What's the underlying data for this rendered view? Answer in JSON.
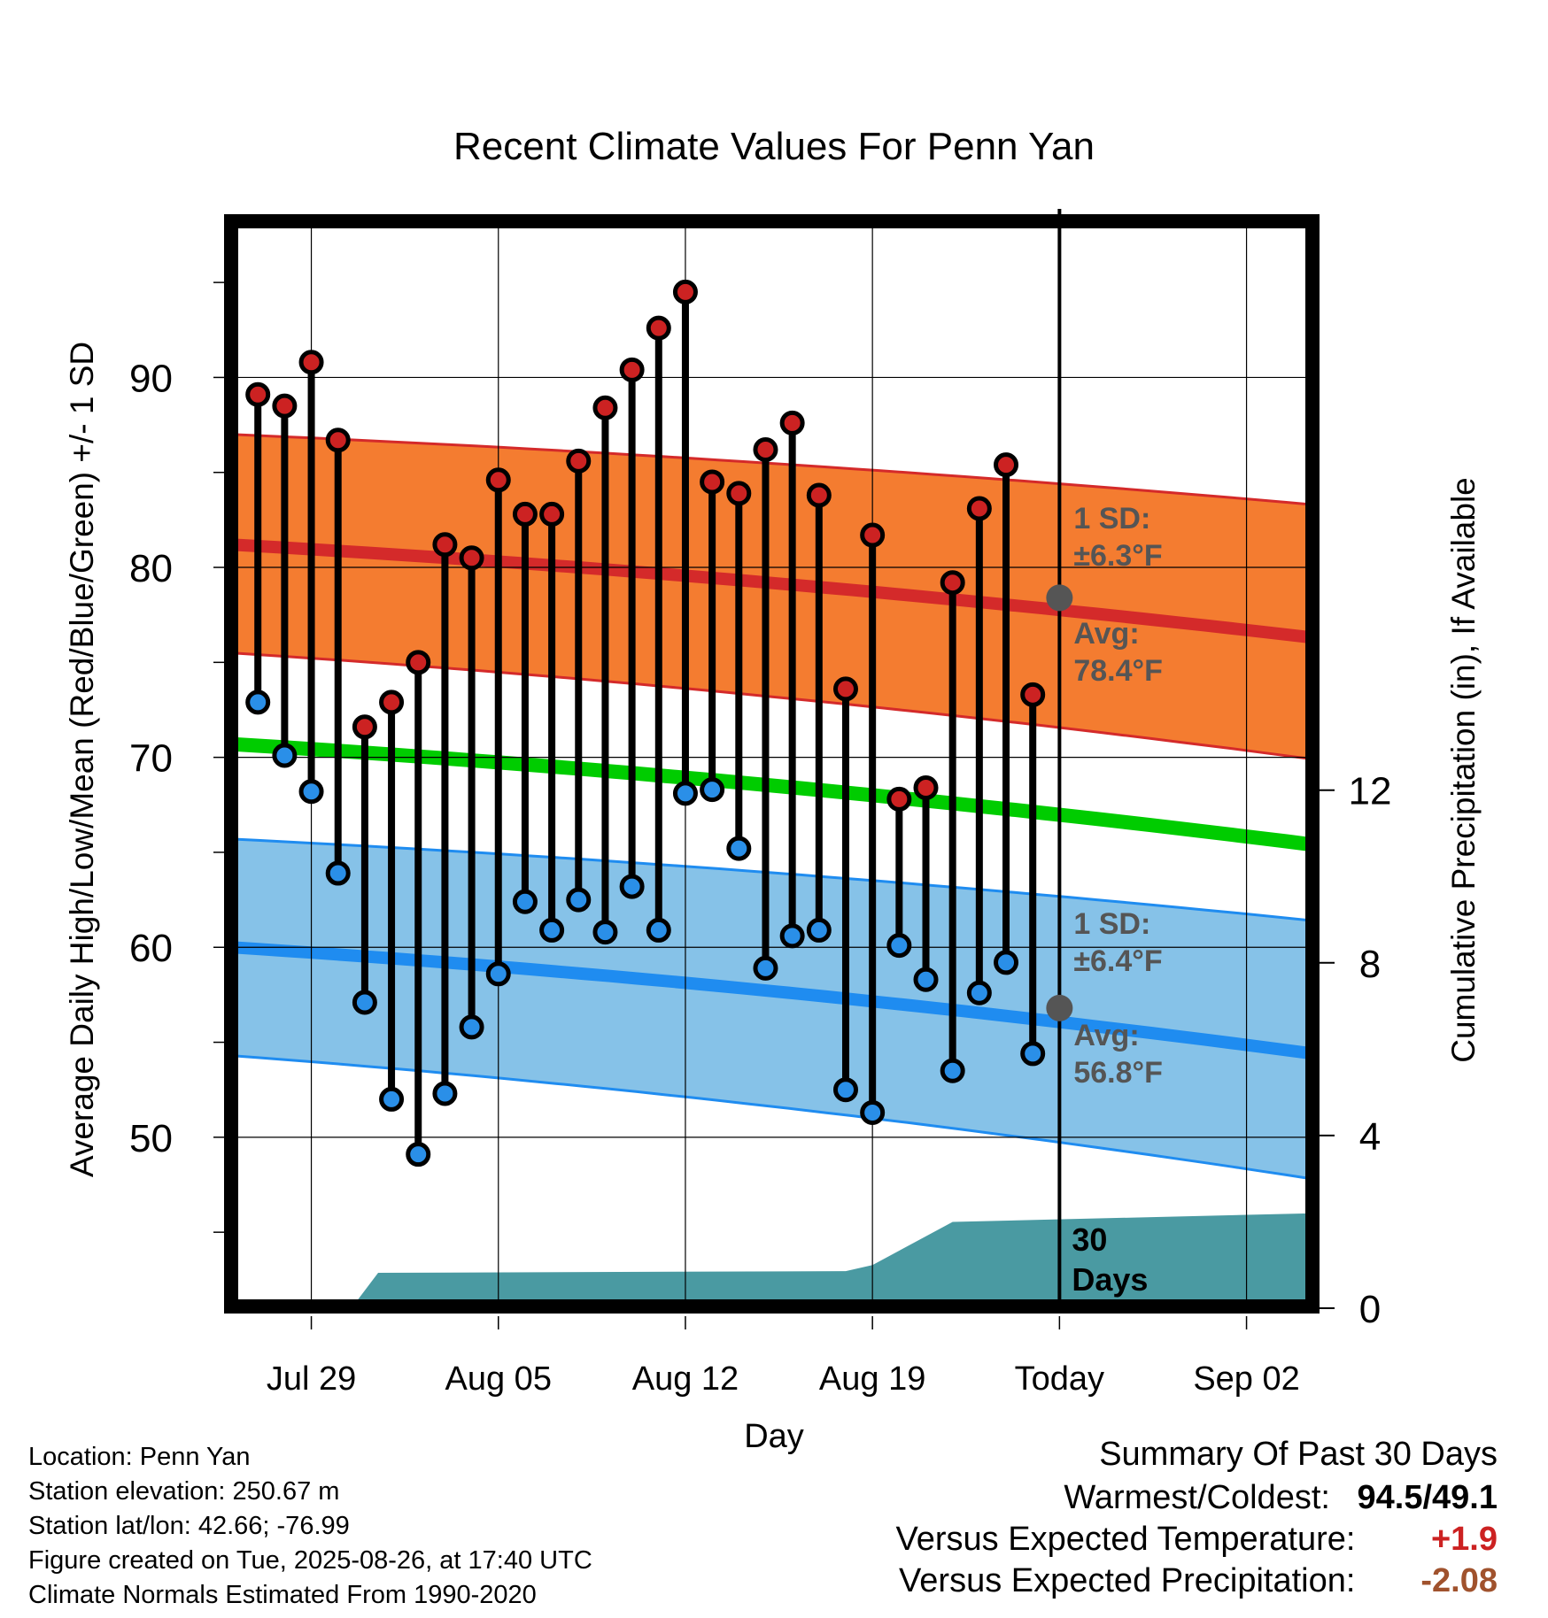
{
  "chart_data": {
    "type": "line",
    "title": "Recent Climate Values For Penn Yan",
    "xlabel": "Day",
    "ylabel": "Average Daily High/Low/Mean (Red/Blue/Green) +/- 1 SD",
    "y2label": "Cumulative Precipitation (in), If Available",
    "x_tick_labels": [
      "Jul 29",
      "Aug 05",
      "Aug 12",
      "Aug 19",
      "Today",
      "Sep 02"
    ],
    "x_tick_days": [
      3,
      10,
      17,
      24,
      31,
      38
    ],
    "y_ticks": [
      50,
      60,
      70,
      80,
      90
    ],
    "y2_ticks": [
      0,
      4,
      8,
      12
    ],
    "ylim": [
      41,
      98.5
    ],
    "y2lim": [
      0,
      25.3
    ],
    "xlim": [
      -0.2,
      40.5
    ],
    "grid": true,
    "today_day": 31,
    "today_label": [
      "30",
      "Days"
    ],
    "daily_days": [
      1,
      2,
      3,
      4,
      5,
      6,
      7,
      8,
      9,
      10,
      11,
      12,
      13,
      14,
      15,
      16,
      17,
      18,
      19,
      20,
      21,
      22,
      23,
      24,
      25,
      26,
      27,
      28,
      29,
      30
    ],
    "daily_high": [
      89.1,
      88.5,
      90.8,
      86.7,
      71.6,
      72.9,
      75.0,
      81.2,
      80.5,
      84.6,
      82.8,
      82.8,
      85.6,
      88.4,
      90.4,
      92.6,
      94.5,
      84.5,
      83.9,
      86.2,
      87.6,
      83.8,
      73.6,
      81.7,
      67.8,
      68.4,
      79.2,
      83.1,
      85.4,
      73.3
    ],
    "daily_low": [
      72.9,
      70.1,
      68.2,
      63.9,
      57.1,
      52.0,
      49.1,
      52.3,
      55.8,
      58.6,
      62.4,
      60.9,
      62.5,
      60.8,
      63.2,
      60.9,
      68.1,
      68.3,
      65.2,
      58.9,
      60.6,
      60.9,
      52.5,
      51.3,
      60.1,
      58.3,
      53.5,
      57.6,
      59.2,
      54.4
    ],
    "normal_days": [
      0,
      40.5
    ],
    "normal_high_avg": [
      81.2,
      76.3
    ],
    "normal_high_sd_upper": [
      87.0,
      83.3
    ],
    "normal_high_sd_lower": [
      75.5,
      69.9
    ],
    "normal_mean": [
      70.7,
      65.4
    ],
    "normal_low_avg": [
      60.0,
      54.4
    ],
    "normal_low_sd_upper": [
      65.7,
      61.4
    ],
    "normal_low_sd_lower": [
      54.3,
      47.8
    ],
    "precip_days": [
      4.5,
      5.5,
      23.0,
      24.0,
      27.0,
      40.5
    ],
    "precip_cumulative": [
      0.0,
      0.82,
      0.86,
      1.0,
      2.0,
      2.2
    ],
    "high_annotation": {
      "sd": "1 SD:",
      "sd_value": "±6.3°F",
      "avg": "Avg:",
      "avg_value": "78.4°F",
      "today_avg": 78.4
    },
    "low_annotation": {
      "sd": "1 SD:",
      "sd_value": "±6.4°F",
      "avg": "Avg:",
      "avg_value": "56.8°F",
      "today_avg": 56.8
    },
    "colors": {
      "high_band": "#f47c30",
      "high_line": "#d42a2a",
      "low_band": "#86c2e8",
      "low_line": "#1f8cf0",
      "mean_line": "#00cc00",
      "precip": "#4a9aa2",
      "high_marker": "#cc2222",
      "low_marker": "#2a8fe8",
      "annotation_text": "#555555",
      "today_marker": "#555555"
    }
  },
  "info": {
    "location": "Location: Penn Yan",
    "elevation": "Station elevation: 250.67 m",
    "latlon": "Station lat/lon: 42.66; -76.99",
    "created": "Figure created on Tue, 2025-08-26, at 17:40 UTC",
    "normals": "Climate Normals Estimated From 1990-2020"
  },
  "summary": {
    "title": "Summary Of Past 30 Days",
    "warmest_label": "Warmest/Coldest:",
    "warmest_value": "94.5/49.1",
    "temp_label": "Versus Expected Temperature:",
    "temp_value": "+1.9",
    "temp_color": "#cc2222",
    "precip_label": "Versus Expected Precipitation:",
    "precip_value": "-2.08",
    "precip_color": "#a0522d"
  }
}
